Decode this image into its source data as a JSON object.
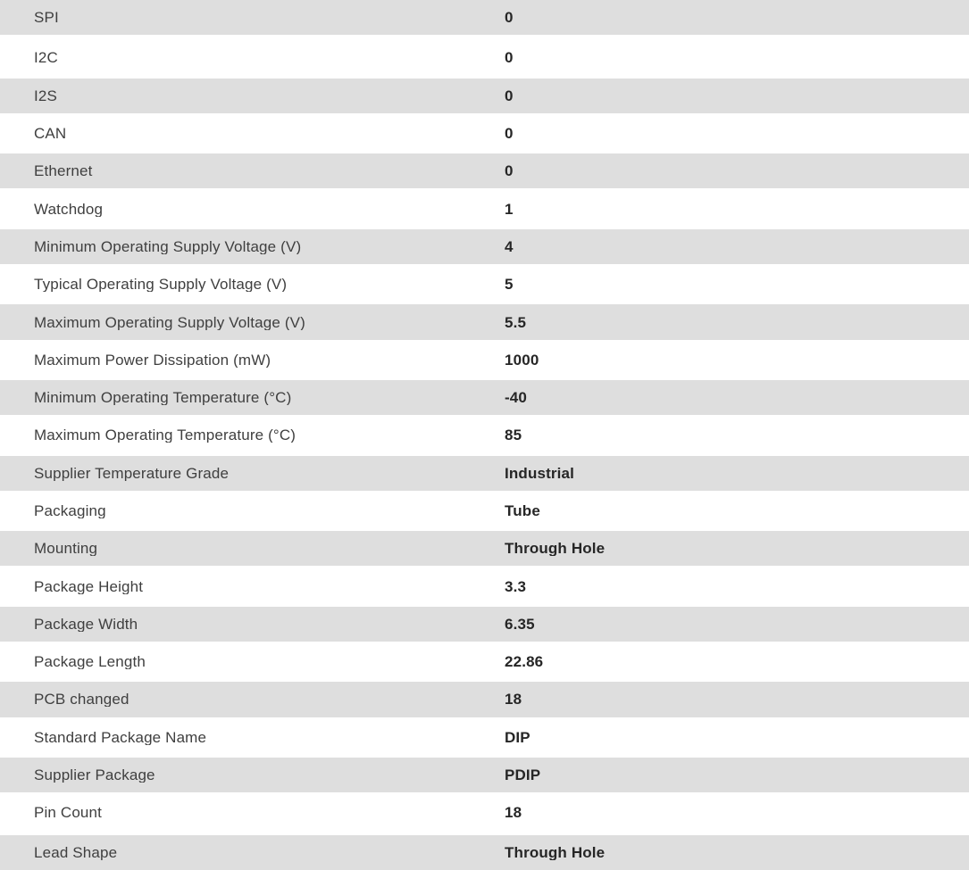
{
  "colors": {
    "stripe": "#dedede",
    "background": "#ffffff",
    "label_text": "#3f3f3f",
    "value_text": "#262626"
  },
  "table": {
    "rows": [
      {
        "label": "SPI",
        "value": "0"
      },
      {
        "label": "I2C",
        "value": "0"
      },
      {
        "label": "I2S",
        "value": "0"
      },
      {
        "label": "CAN",
        "value": "0"
      },
      {
        "label": "Ethernet",
        "value": "0"
      },
      {
        "label": "Watchdog",
        "value": "1"
      },
      {
        "label": "Minimum Operating Supply Voltage (V)",
        "value": "4"
      },
      {
        "label": "Typical Operating Supply Voltage (V)",
        "value": "5"
      },
      {
        "label": "Maximum Operating Supply Voltage (V)",
        "value": "5.5"
      },
      {
        "label": "Maximum Power Dissipation (mW)",
        "value": "1000"
      },
      {
        "label": "Minimum Operating Temperature (°C)",
        "value": "-40"
      },
      {
        "label": "Maximum Operating Temperature (°C)",
        "value": "85"
      },
      {
        "label": "Supplier Temperature Grade",
        "value": "Industrial"
      },
      {
        "label": "Packaging",
        "value": "Tube"
      },
      {
        "label": "Mounting",
        "value": "Through Hole"
      },
      {
        "label": "Package Height",
        "value": "3.3"
      },
      {
        "label": "Package Width",
        "value": "6.35"
      },
      {
        "label": "Package Length",
        "value": "22.86"
      },
      {
        "label": "PCB changed",
        "value": "18"
      },
      {
        "label": "Standard Package Name",
        "value": "DIP"
      },
      {
        "label": "Supplier Package",
        "value": "PDIP"
      },
      {
        "label": "Pin Count",
        "value": "18"
      },
      {
        "label": "Lead Shape",
        "value": "Through Hole"
      }
    ]
  }
}
